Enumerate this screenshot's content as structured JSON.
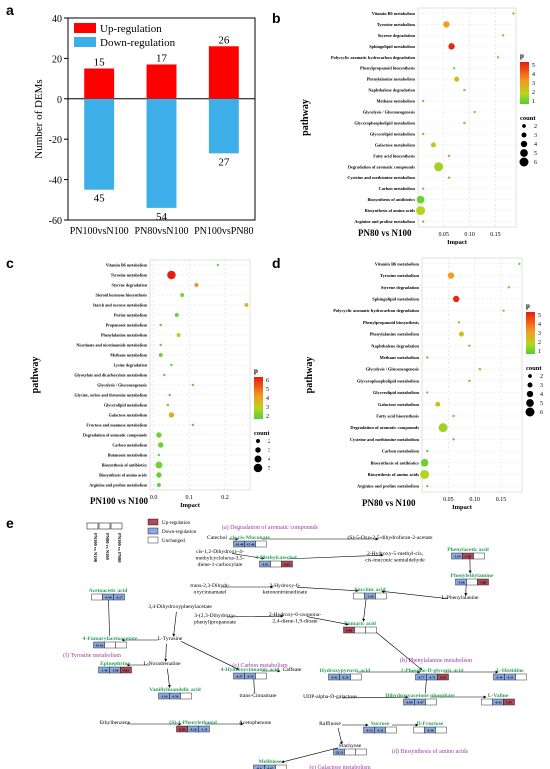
{
  "panels": {
    "a": "a",
    "b": "b",
    "c": "c",
    "d": "d",
    "e": "e"
  },
  "chart_data": [
    {
      "type": "bar",
      "id": "a",
      "categories": [
        "PN100vsN100",
        "PN80vsN100",
        "PN100vsPN80"
      ],
      "series": [
        {
          "name": "Up-regulation",
          "color": "#ff0000",
          "values": [
            15,
            17,
            26
          ]
        },
        {
          "name": "Down-regulation",
          "color": "#3eaee8",
          "values": [
            -45,
            -54,
            -27
          ]
        }
      ],
      "data_labels": {
        "up": [
          "15",
          "17",
          "26"
        ],
        "down": [
          "45",
          "54",
          "27"
        ]
      },
      "ylabel": "Number of DEMs",
      "ylim": [
        -60,
        40
      ],
      "yticks": [
        -60,
        -40,
        -20,
        0,
        20,
        40
      ],
      "legend": "top-left"
    },
    {
      "type": "scatter",
      "id": "b",
      "title": "PN80 vs N100",
      "xlabel": "Impact",
      "ylabel": "pathway",
      "xticks": [
        "0.05",
        "0.10",
        "0.15"
      ],
      "xtick_values": [
        0.05,
        0.1,
        0.15
      ],
      "xlim": [
        0,
        0.19
      ],
      "color_title": "p",
      "color_ticks": [
        "5",
        "4",
        "3",
        "2",
        "1"
      ],
      "size_title": "count",
      "size_ticks": [
        "2",
        "3",
        "4",
        "5",
        "6"
      ],
      "pathways": [
        "Vitamin B6 metabolism",
        "Tyrosine metabolism",
        "Styrene degradation",
        "Sphingolipid metabolism",
        "Polycyclic aromatic hydrocarbon degradation",
        "Phenylpropanoid biosynthesis",
        "Phenylalanine metabolism",
        "Naphthalene degradation",
        "Methane metabolism",
        "Glycolysis / Gluconeogenesis",
        "Glycerophospholipid metabolism",
        "Glycerolipid metabolism",
        "Galactose metabolism",
        "Fatty acid biosynthesis",
        "Degradation of aromatic compounds",
        "Cysteine and methionine metabolism",
        "Carbon metabolism",
        "Biosynthesis of antibiotics",
        "Biosynthesis of amino acids",
        "Arginine and proline metabolism"
      ],
      "points": [
        {
          "x": 0.185,
          "count": 1,
          "p": 1.3
        },
        {
          "x": 0.055,
          "count": 4,
          "p": 3.6
        },
        {
          "x": 0.165,
          "count": 1,
          "p": 1.6
        },
        {
          "x": 0.065,
          "count": 4,
          "p": 4.9
        },
        {
          "x": 0.155,
          "count": 1,
          "p": 1.5
        },
        {
          "x": 0.07,
          "count": 1,
          "p": 1.6
        },
        {
          "x": 0.075,
          "count": 3,
          "p": 3.0
        },
        {
          "x": 0.09,
          "count": 1,
          "p": 1.4
        },
        {
          "x": 0.01,
          "count": 1,
          "p": 1.2
        },
        {
          "x": 0.11,
          "count": 1,
          "p": 1.3
        },
        {
          "x": 0.09,
          "count": 1,
          "p": 1.3
        },
        {
          "x": 0.01,
          "count": 1,
          "p": 1.2
        },
        {
          "x": 0.03,
          "count": 3,
          "p": 2.8
        },
        {
          "x": 0.06,
          "count": 1,
          "p": 1.3
        },
        {
          "x": 0.04,
          "count": 6,
          "p": 2.0
        },
        {
          "x": 0.06,
          "count": 1,
          "p": 1.2
        },
        {
          "x": 0.01,
          "count": 1,
          "p": 1.2
        },
        {
          "x": 0.005,
          "count": 5,
          "p": 1.4
        },
        {
          "x": 0.005,
          "count": 6,
          "p": 2.3
        },
        {
          "x": 0.01,
          "count": 1,
          "p": 1.1
        }
      ]
    },
    {
      "type": "scatter",
      "id": "c",
      "title": "PN100 vs N100",
      "xlabel": "Impact",
      "ylabel": "pathway",
      "xticks": [
        "0.0",
        "0.1",
        "0.2"
      ],
      "xtick_values": [
        0,
        0.1,
        0.2
      ],
      "xlim": [
        -0.01,
        0.27
      ],
      "color_title": "p",
      "color_ticks": [
        "6",
        "5",
        "4",
        "3",
        "2"
      ],
      "size_title": "count",
      "size_ticks": [
        "2",
        "3",
        "4",
        "5"
      ],
      "pathways": [
        "Vitamin B6 metabolism",
        "Tyrosine metabolism",
        "Styrene degradation",
        "Steroid hormone biosynthesis",
        "Starch and sucrose metabolism",
        "Purine metabolism",
        "Propanoate metabolism",
        "Phenylalanine metabolism",
        "Nicotinate and nicotinamide metabolism",
        "Methane metabolism",
        "Lysine degradation",
        "Glyoxylate and dicarboxylate metabolism",
        "Glycolysis / Gluconeogenesis",
        "Glycine, serine and threonine metabolism",
        "Glycerolipid metabolism",
        "Galactose metabolism",
        "Fructose and mannose metabolism",
        "Degradation of aromatic compounds",
        "Carbon metabolism",
        "Butanoate metabolism",
        "Biosynthesis of antibiotics",
        "Biosynthesis of amino acids",
        "Arginine and proline metabolism"
      ],
      "points": [
        {
          "x": 0.18,
          "count": 1,
          "p": 2.5
        },
        {
          "x": 0.05,
          "count": 5,
          "p": 6.8
        },
        {
          "x": 0.12,
          "count": 2,
          "p": 5.3
        },
        {
          "x": 0.08,
          "count": 2,
          "p": 2.6
        },
        {
          "x": 0.26,
          "count": 2,
          "p": 4.3
        },
        {
          "x": 0.065,
          "count": 2,
          "p": 2.4
        },
        {
          "x": 0.02,
          "count": 1,
          "p": 2.2
        },
        {
          "x": 0.07,
          "count": 2,
          "p": 3.4
        },
        {
          "x": 0.02,
          "count": 1,
          "p": 2.2
        },
        {
          "x": 0.02,
          "count": 2,
          "p": 2.5
        },
        {
          "x": 0.05,
          "count": 1,
          "p": 2.1
        },
        {
          "x": 0.03,
          "count": 1,
          "p": 2.1
        },
        {
          "x": 0.11,
          "count": 1,
          "p": 2.2
        },
        {
          "x": 0.045,
          "count": 1,
          "p": 2.1
        },
        {
          "x": 0.04,
          "count": 1,
          "p": 2.0
        },
        {
          "x": 0.05,
          "count": 3,
          "p": 4.6
        },
        {
          "x": 0.11,
          "count": 1,
          "p": 2.1
        },
        {
          "x": 0.015,
          "count": 3,
          "p": 2.5
        },
        {
          "x": 0.02,
          "count": 3,
          "p": 2.4
        },
        {
          "x": 0.015,
          "count": 1,
          "p": 2.2
        },
        {
          "x": 0.015,
          "count": 4,
          "p": 2.6
        },
        {
          "x": 0.015,
          "count": 3,
          "p": 2.3
        },
        {
          "x": 0.015,
          "count": 2,
          "p": 2.2
        }
      ]
    },
    {
      "type": "scatter",
      "id": "d",
      "title": "PN80 vs N100",
      "xlabel": "Impact",
      "ylabel": "pathway",
      "xticks": [
        "0.05",
        "0.10",
        "0.15"
      ],
      "xtick_values": [
        0.05,
        0.1,
        0.15
      ],
      "xlim": [
        0,
        0.19
      ],
      "color_title": "p",
      "color_ticks": [
        "5",
        "4",
        "3",
        "2",
        "1"
      ],
      "size_title": "count",
      "size_ticks": [
        "2",
        "3",
        "4",
        "5",
        "6"
      ],
      "pathways": [
        "Vitamin B6 metabolism",
        "Tyrosine metabolism",
        "Styrene degradation",
        "Sphingolipid metabolism",
        "Polycyclic aromatic hydrocarbon degradation",
        "Phenylpropanoid biosynthesis",
        "Phenylalanine metabolism",
        "Naphthalene degradation",
        "Methane metabolism",
        "Glycolysis / Gluconeogenesis",
        "Glycerophospholipid metabolism",
        "Glycerolipid metabolism",
        "Galactose metabolism",
        "Fatty acid biosynthesis",
        "Degradation of aromatic compounds",
        "Cysteine and methionine metabolism",
        "Carbon metabolism",
        "Biosynthesis of antibiotics",
        "Biosynthesis of amino acids",
        "Arginine and proline metabolism"
      ],
      "points": [
        {
          "x": 0.185,
          "count": 1,
          "p": 1.3
        },
        {
          "x": 0.055,
          "count": 4,
          "p": 3.6
        },
        {
          "x": 0.165,
          "count": 1,
          "p": 1.6
        },
        {
          "x": 0.065,
          "count": 4,
          "p": 4.9
        },
        {
          "x": 0.155,
          "count": 1,
          "p": 1.5
        },
        {
          "x": 0.07,
          "count": 1,
          "p": 1.6
        },
        {
          "x": 0.075,
          "count": 3,
          "p": 3.0
        },
        {
          "x": 0.09,
          "count": 1,
          "p": 1.4
        },
        {
          "x": 0.01,
          "count": 1,
          "p": 1.2
        },
        {
          "x": 0.11,
          "count": 1,
          "p": 1.3
        },
        {
          "x": 0.09,
          "count": 1,
          "p": 1.3
        },
        {
          "x": 0.01,
          "count": 1,
          "p": 1.2
        },
        {
          "x": 0.03,
          "count": 3,
          "p": 2.8
        },
        {
          "x": 0.06,
          "count": 1,
          "p": 1.3
        },
        {
          "x": 0.04,
          "count": 6,
          "p": 2.0
        },
        {
          "x": 0.06,
          "count": 1,
          "p": 1.2
        },
        {
          "x": 0.01,
          "count": 1,
          "p": 1.2
        },
        {
          "x": 0.005,
          "count": 5,
          "p": 1.4
        },
        {
          "x": 0.005,
          "count": 6,
          "p": 2.3
        },
        {
          "x": 0.01,
          "count": 1,
          "p": 1.1
        }
      ]
    }
  ],
  "network": {
    "legend": {
      "up": "Up-regulation",
      "down": "Down-regulation",
      "unchanged": "Unchanged",
      "up_color": "#b04a58",
      "down_color": "#8aa9e0"
    },
    "columns": [
      "PN100 vs N100",
      "PN80 vs N100",
      "PN100 vs PN80"
    ],
    "sections": [
      "(a) Degradation of aromatic compounds",
      "(f) Tyrosine metabolism",
      "(b) Phenylalanine metabolism",
      "(c) Carbon metabolism",
      "(d) Biosynthesis of amino acids",
      "(e) Galactose metabolism"
    ],
    "metabolites": [
      {
        "id": "catechol",
        "label": "Catechol",
        "green": false
      },
      {
        "id": "muconate",
        "label": "cis,cis-Muconate",
        "green": true,
        "vals": [
          "-19.48",
          "-15.48",
          ""
        ]
      },
      {
        "id": "oxodihydrofuran",
        "label": "(S)-5-Oxo-2,5-dihydrofuran-2-acetate",
        "green": false
      },
      {
        "id": "cisdihydroxy",
        "label": "cis-1,2-Dihydroxy-4-\nmethylcyclohexa-3,5-\ndiene-1-carboxylate",
        "green": false
      },
      {
        "id": "methylcatechol",
        "label": "4-Methylcatechol",
        "green": true,
        "vals": [
          "-0.92",
          "",
          "0.61"
        ]
      },
      {
        "id": "semialdehyde",
        "label": "2-Hydroxy-5-methyl-cis,\ncis-muconic semialdehyde",
        "green": false
      },
      {
        "id": "phenylacetic",
        "label": "Phenylacetic acid",
        "green": true,
        "vals": [
          "-1.04",
          "1.36",
          ""
        ]
      },
      {
        "id": "phenylethylamine",
        "label": "Phenylethylamine",
        "green": true,
        "vals": [
          "-1.06",
          "",
          "1.86"
        ]
      },
      {
        "id": "trans23",
        "label": "trans-2,3-Dihydr-\noxycinnamatel",
        "green": false
      },
      {
        "id": "hydroxyoxo",
        "label": "2-Hydroxy-6-\nketonontrienedioate",
        "green": false
      },
      {
        "id": "succinic",
        "label": "Succinic acid",
        "green": true,
        "vals": [
          "",
          "-1.90",
          ""
        ]
      },
      {
        "id": "phenylalanine",
        "label": "L-Phenylalanine",
        "green": false
      },
      {
        "id": "acetoacetic",
        "label": "Acetoacetic acid",
        "green": true,
        "vals": [
          "",
          "-0.40",
          "-0.27"
        ]
      },
      {
        "id": "dihydroxyphenylacetate",
        "label": "3,4-Dihydroxyphenylacetate",
        "green": false
      },
      {
        "id": "dihydroxyphenylpropanoate",
        "label": "3-(2,3-Dihydroxy-\nphenyl)propanoate",
        "green": false
      },
      {
        "id": "hydroxyoxopenta",
        "label": "2-Hydroxy-6-oxonona-\n2,4-diene-1,9-dioate",
        "green": false
      },
      {
        "id": "fumaric",
        "label": "Fumaric acid",
        "green": true,
        "vals": [
          "0.48",
          "",
          ""
        ]
      },
      {
        "id": "fumarylacetoacetate",
        "label": "4-Fumarylacetoacetate",
        "green": true,
        "vals": [
          "-19.02",
          "",
          ""
        ]
      },
      {
        "id": "tyrosine",
        "label": "L-Tyrosine",
        "green": false
      },
      {
        "id": "epinephrine",
        "label": "Epinephrine",
        "green": true,
        "vals": [
          "-1.40",
          "-1.86",
          "0.61"
        ]
      },
      {
        "id": "noradrenaline",
        "label": "L-Noradrenaline",
        "green": false
      },
      {
        "id": "hydroxycinnamic",
        "label": "4-Hydroxycinnamic acid",
        "green": true,
        "vals": [
          "-0.47",
          "-0.45",
          ""
        ]
      },
      {
        "id": "caffeate",
        "label": "Caffeate",
        "green": false
      },
      {
        "id": "hydroxypyruvic",
        "label": "Hydroxypyruvic acid",
        "green": true,
        "vals": [
          "-0.42",
          "-0.29",
          ""
        ]
      },
      {
        "id": "phosphoglyceric",
        "label": "2-Phospho-D-glyceric acid",
        "green": true,
        "vals": [
          "-0.77",
          "-0.71",
          "0.43"
        ]
      },
      {
        "id": "histidine",
        "label": "L-Histidine",
        "green": true,
        "vals": [
          "-0.49",
          "-0.51",
          ""
        ]
      },
      {
        "id": "vanillylmandelic",
        "label": "Vanillylmandelic acid",
        "green": true,
        "vals": [
          "-1.93",
          "-0.56",
          ""
        ]
      },
      {
        "id": "transcinnamate",
        "label": "trans-Cinnamate",
        "green": false
      },
      {
        "id": "udpgalactose",
        "label": "UDP-alpha-D-galactose",
        "green": false
      },
      {
        "id": "dihydroxyacetone",
        "label": "Dihydroxyacetone phosphate",
        "green": true,
        "vals": [
          "-0.89",
          "-0.47",
          ""
        ]
      },
      {
        "id": "valine",
        "label": "L-Valine",
        "green": true,
        "vals": [
          "",
          "-0.43",
          "1.07"
        ]
      },
      {
        "id": "ethylbenzene",
        "label": "Ethylbenzene",
        "green": false
      },
      {
        "id": "phenylethanol",
        "label": "(S)-1-Phenylethanol",
        "green": true,
        "vals": [
          "0.39",
          "-0.26",
          "-1.11"
        ]
      },
      {
        "id": "acetophenone",
        "label": "Acetophenone",
        "green": false
      },
      {
        "id": "raffinose",
        "label": "Raffinose",
        "green": false
      },
      {
        "id": "sucrose",
        "label": "Sucrose",
        "green": true,
        "vals": [
          "-0.53",
          "-0.31",
          ""
        ]
      },
      {
        "id": "fructose",
        "label": "D-Fructose",
        "green": true,
        "vals": [
          "",
          "-0.36",
          ""
        ]
      },
      {
        "id": "stachyose",
        "label": "Stachyose",
        "green": false,
        "vals": [
          "-23.11",
          "",
          ""
        ]
      },
      {
        "id": "melibiose",
        "label": "Melibiose",
        "green": true,
        "vals": [
          "-0.6",
          "-0.62",
          ""
        ]
      }
    ]
  }
}
